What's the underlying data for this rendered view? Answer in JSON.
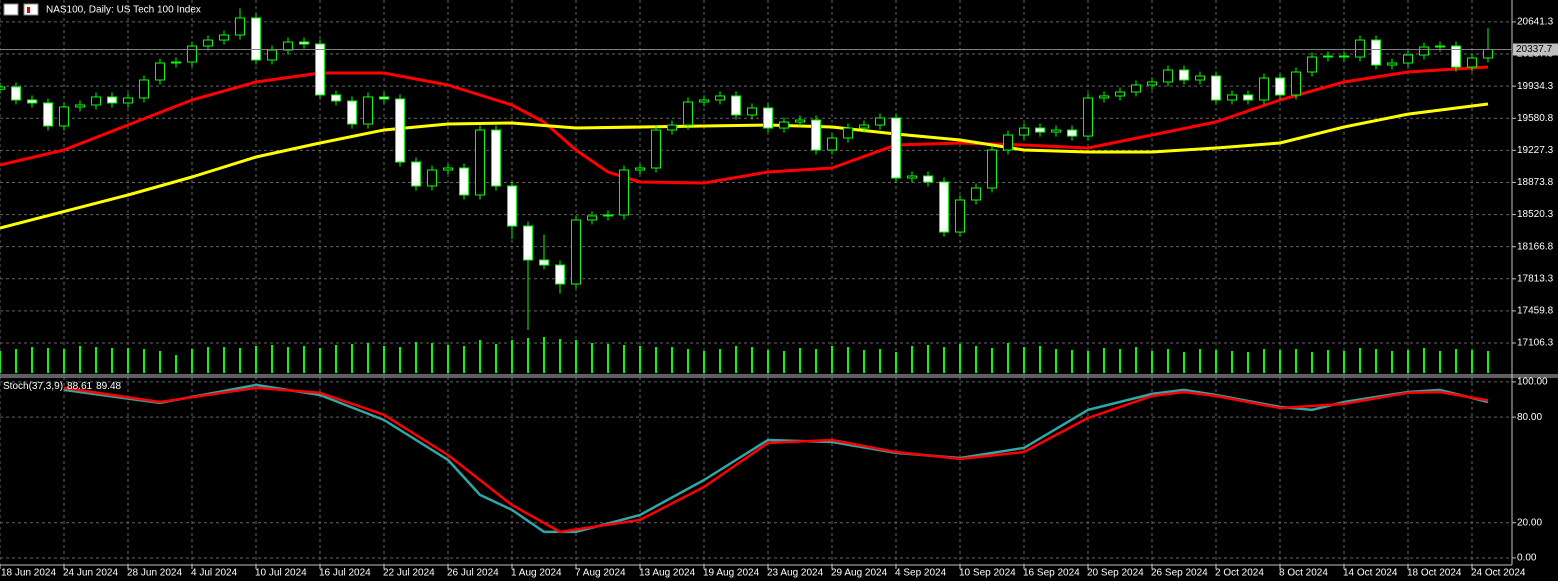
{
  "chart_data": [
    {
      "type": "candlestick",
      "title": "NAS100, Daily:  US Tech 100 Index",
      "open": [
        19900,
        19925,
        19782,
        19749,
        19496,
        19705,
        19727,
        19815,
        19749,
        19804,
        20002,
        20189,
        20200,
        20376,
        20442,
        20497,
        20685,
        20222,
        20332,
        20420,
        20398,
        19837,
        19771,
        19517,
        19815,
        19793,
        19099,
        18835,
        19011,
        19033,
        18736,
        19451,
        18835,
        18394,
        18020,
        17965,
        17756,
        18461,
        18505,
        18516,
        19011,
        19033,
        19451,
        19506,
        19760,
        19782,
        19826,
        19617,
        19694,
        19473,
        19539,
        19561,
        19231,
        19363,
        19473,
        19506,
        19584,
        18923,
        18945,
        18879,
        18328,
        18681,
        18813,
        19231,
        19396,
        19473,
        19429,
        19451,
        19385,
        19804,
        19826,
        19870,
        19947,
        19980,
        20112,
        20002,
        20046,
        19782,
        19837,
        19782,
        20024,
        19837,
        20090,
        20255,
        20266,
        20255,
        20442,
        20167,
        20189,
        20277,
        20365,
        20376,
        20145,
        20244
      ],
      "high": [
        19975,
        19975,
        19832,
        19799,
        19755,
        19777,
        19865,
        19865,
        19854,
        20052,
        20239,
        20250,
        20426,
        20492,
        20547,
        20790,
        20735,
        20382,
        20470,
        20470,
        20448,
        19887,
        19821,
        19865,
        19865,
        19843,
        19149,
        19061,
        19083,
        19083,
        19501,
        19501,
        18885,
        18444,
        18300,
        18015,
        18511,
        18555,
        18566,
        19061,
        19083,
        19501,
        19556,
        19810,
        19832,
        19876,
        19876,
        19744,
        19744,
        19589,
        19611,
        19611,
        19413,
        19523,
        19556,
        19634,
        19634,
        18995,
        18995,
        18929,
        18731,
        18863,
        19281,
        19446,
        19523,
        19523,
        19501,
        19501,
        19854,
        19876,
        19920,
        19997,
        20030,
        20162,
        20162,
        20096,
        20096,
        19887,
        19887,
        20074,
        20074,
        20140,
        20305,
        20316,
        20316,
        20492,
        20492,
        20239,
        20327,
        20415,
        20426,
        20426,
        20294,
        20574
      ],
      "low": [
        19850,
        19732,
        19699,
        19446,
        19446,
        19655,
        19677,
        19699,
        19699,
        19754,
        19952,
        20139,
        20150,
        20326,
        20392,
        20447,
        20172,
        20172,
        20282,
        20348,
        19787,
        19721,
        19467,
        19467,
        19743,
        19049,
        18785,
        18785,
        18961,
        18686,
        18686,
        18785,
        18250,
        17250,
        17915,
        17650,
        17706,
        18411,
        18455,
        18466,
        18961,
        18983,
        19401,
        19456,
        19710,
        19732,
        19567,
        19567,
        19423,
        19423,
        19489,
        19181,
        19181,
        19313,
        19423,
        19456,
        18873,
        18873,
        18829,
        18278,
        18278,
        18631,
        18763,
        19181,
        19346,
        19379,
        19379,
        19335,
        19335,
        19754,
        19776,
        19820,
        19897,
        19930,
        19952,
        19952,
        19732,
        19732,
        19732,
        19732,
        19787,
        19787,
        20040,
        20205,
        20205,
        20205,
        20117,
        20117,
        20139,
        20227,
        20315,
        20095,
        20095,
        20194
      ],
      "close": [
        19925,
        19782,
        19749,
        19496,
        19705,
        19727,
        19815,
        19749,
        19804,
        20002,
        20189,
        20200,
        20376,
        20442,
        20497,
        20685,
        20222,
        20332,
        20420,
        20398,
        19837,
        19771,
        19517,
        19815,
        19793,
        19099,
        18835,
        19011,
        19033,
        18736,
        19451,
        18835,
        18394,
        18020,
        17965,
        17756,
        18461,
        18505,
        18516,
        19011,
        19033,
        19451,
        19506,
        19760,
        19782,
        19826,
        19617,
        19694,
        19473,
        19539,
        19561,
        19231,
        19363,
        19473,
        19506,
        19584,
        18923,
        18945,
        18879,
        18328,
        18681,
        18813,
        19231,
        19396,
        19473,
        19429,
        19451,
        19385,
        19804,
        19826,
        19870,
        19947,
        19980,
        20112,
        20002,
        20046,
        19782,
        19837,
        19782,
        20024,
        19837,
        20090,
        20255,
        20266,
        20255,
        20442,
        20167,
        20189,
        20277,
        20365,
        20376,
        20145,
        20244,
        20337.7
      ],
      "up_color": "#000000",
      "down_color": "#ffffff",
      "outline_color": "#00ff00",
      "last_price": 20337.7,
      "overlays": [
        {
          "color": "#ff0000",
          "x": [
            0,
            4,
            8,
            12,
            16,
            20,
            24,
            28,
            32,
            34,
            36,
            38,
            40,
            44,
            48,
            52,
            56,
            60,
            64,
            68,
            72,
            76,
            80,
            84,
            88,
            93
          ],
          "values": [
            19066,
            19231,
            19506,
            19782,
            19980,
            20079,
            20079,
            19947,
            19727,
            19540,
            19231,
            18989,
            18879,
            18868,
            18989,
            19033,
            19286,
            19308,
            19286,
            19253,
            19396,
            19540,
            19782,
            19980,
            20090,
            20145
          ]
        },
        {
          "color": "#ffff00",
          "x": [
            0,
            8,
            12,
            16,
            20,
            24,
            28,
            32,
            36,
            40,
            44,
            48,
            52,
            56,
            60,
            64,
            68,
            72,
            76,
            80,
            84,
            88,
            93
          ],
          "values": [
            18372,
            18736,
            18934,
            19154,
            19308,
            19451,
            19517,
            19528,
            19473,
            19484,
            19495,
            19506,
            19484,
            19407,
            19341,
            19231,
            19209,
            19209,
            19253,
            19308,
            19484,
            19627,
            19738
          ]
        }
      ],
      "volume": {
        "color": "#00ff00",
        "ylim": [
          0,
          40
        ],
        "values": [
          22,
          24,
          26,
          25,
          24,
          27,
          26,
          25,
          25,
          24,
          22,
          18,
          24,
          26,
          26,
          25,
          27,
          28,
          26,
          27,
          25,
          28,
          29,
          30,
          27,
          26,
          31,
          30,
          28,
          27,
          33,
          29,
          33,
          35,
          36,
          34,
          33,
          30,
          29,
          28,
          27,
          26,
          26,
          24,
          22,
          24,
          27,
          26,
          23,
          22,
          25,
          24,
          27,
          26,
          23,
          24,
          21,
          27,
          28,
          26,
          29,
          27,
          25,
          30,
          26,
          27,
          24,
          23,
          22,
          25,
          24,
          26,
          22,
          24,
          21,
          24,
          23,
          22,
          21,
          24,
          23,
          24,
          21,
          23,
          22,
          25,
          24,
          22,
          23,
          25,
          22,
          24,
          23,
          22
        ]
      },
      "ylim": [
        16754,
        20882.7
      ],
      "yticks": [
        20641.3,
        20287.8,
        19934.3,
        19580.8,
        19227.3,
        18873.8,
        18520.3,
        18166.8,
        17813.3,
        17459.8,
        17106.3
      ],
      "xlim": [
        0,
        94.5
      ],
      "xticks": [
        {
          "value": 0,
          "label": "18 Jun 2024"
        },
        {
          "value": 4,
          "label": "24 Jun 2024"
        },
        {
          "value": 8,
          "label": "28 Jun 2024"
        },
        {
          "value": 12,
          "label": "4 Jul 2024"
        },
        {
          "value": 16,
          "label": "10 Jul 2024"
        },
        {
          "value": 20,
          "label": "16 Jul 2024"
        },
        {
          "value": 24,
          "label": "22 Jul 2024"
        },
        {
          "value": 28,
          "label": "26 Jul 2024"
        },
        {
          "value": 32,
          "label": "1 Aug 2024"
        },
        {
          "value": 36,
          "label": "7 Aug 2024"
        },
        {
          "value": 40,
          "label": "13 Aug 2024"
        },
        {
          "value": 44,
          "label": "19 Aug 2024"
        },
        {
          "value": 48,
          "label": "23 Aug 2024"
        },
        {
          "value": 52,
          "label": "29 Aug 2024"
        },
        {
          "value": 56,
          "label": "4 Sep 2024"
        },
        {
          "value": 60,
          "label": "10 Sep 2024"
        },
        {
          "value": 64,
          "label": "16 Sep 2024"
        },
        {
          "value": 68,
          "label": "20 Sep 2024"
        },
        {
          "value": 72,
          "label": "26 Sep 2024"
        },
        {
          "value": 76,
          "label": "2 Oct 2024"
        },
        {
          "value": 80,
          "label": "8 Oct 2024"
        },
        {
          "value": 84,
          "label": "14 Oct 2024"
        },
        {
          "value": 88,
          "label": "18 Oct 2024"
        },
        {
          "value": 92,
          "label": "24 Oct 2024"
        }
      ],
      "grid": true
    },
    {
      "type": "line",
      "title": "Stoch(37,3,9)",
      "series": [
        {
          "color": "#2fa7a7",
          "x": [
            4,
            10,
            16,
            20,
            24,
            28,
            30,
            32,
            34,
            36,
            40,
            44,
            48,
            52,
            56,
            60,
            64,
            68,
            72,
            74,
            76,
            80,
            82,
            84,
            88,
            90,
            93
          ],
          "values": [
            95.5,
            88.1,
            98.3,
            92.6,
            78.4,
            55.7,
            35.8,
            27.3,
            14.8,
            14.8,
            24.4,
            44.3,
            67.0,
            65.9,
            59.7,
            56.8,
            62.5,
            84.1,
            93.2,
            95.5,
            92.6,
            85.8,
            84.1,
            88.6,
            94.3,
            95.5,
            88.61
          ]
        },
        {
          "color": "#ff0000",
          "x": [
            4,
            10,
            16,
            20,
            24,
            28,
            32,
            35,
            40,
            44,
            48,
            52,
            56,
            60,
            64,
            68,
            72,
            74,
            76,
            80,
            84,
            88,
            90,
            93
          ],
          "values": [
            96.6,
            88.6,
            96.6,
            93.8,
            81.3,
            58.5,
            30.1,
            14.8,
            21.6,
            40.3,
            65.3,
            67.0,
            60.2,
            56.3,
            60.2,
            79.5,
            92.0,
            94.3,
            92.0,
            85.2,
            87.5,
            93.8,
            94.3,
            89.48
          ]
        }
      ],
      "ylim": [
        -4,
        102.8
      ],
      "yticks": [
        {
          "value": 100,
          "label": "100.00"
        },
        {
          "value": 80,
          "label": "80.00"
        },
        {
          "value": 20,
          "label": "20.00"
        },
        {
          "value": 0,
          "label": "0.00"
        }
      ],
      "grid": true
    }
  ]
}
